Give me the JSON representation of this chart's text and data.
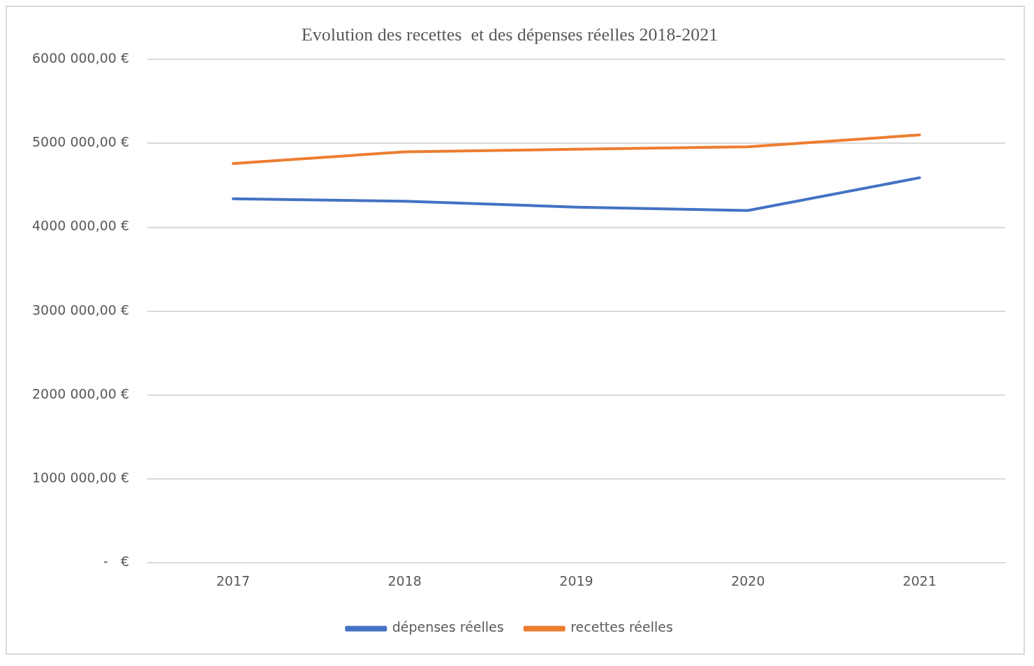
{
  "chart_data": {
    "type": "line",
    "title": "Evolution des recettes  et des dépenses réelles 2018-2021",
    "categories": [
      "2017",
      "2018",
      "2019",
      "2020",
      "2021"
    ],
    "series": [
      {
        "name": "dépenses réelles",
        "color": "#4472c4",
        "values": [
          4340000,
          4310000,
          4240000,
          4200000,
          4590000
        ]
      },
      {
        "name": "recettes réelles",
        "color": "#ed7d31",
        "values": [
          4760000,
          4900000,
          4930000,
          4960000,
          5100000
        ]
      }
    ],
    "ylim": [
      0,
      6000000
    ],
    "yticks": [
      {
        "value": 0,
        "label": "-   €"
      },
      {
        "value": 1000000,
        "label": "1000 000,00 €"
      },
      {
        "value": 2000000,
        "label": "2000 000,00 €"
      },
      {
        "value": 3000000,
        "label": "3000 000,00 €"
      },
      {
        "value": 4000000,
        "label": "4000 000,00 €"
      },
      {
        "value": 5000000,
        "label": "5000 000,00 €"
      },
      {
        "value": 6000000,
        "label": "6000 000,00 €"
      }
    ],
    "grid": "y",
    "legend": "bottom",
    "marker": "none",
    "line_style": "solid"
  }
}
